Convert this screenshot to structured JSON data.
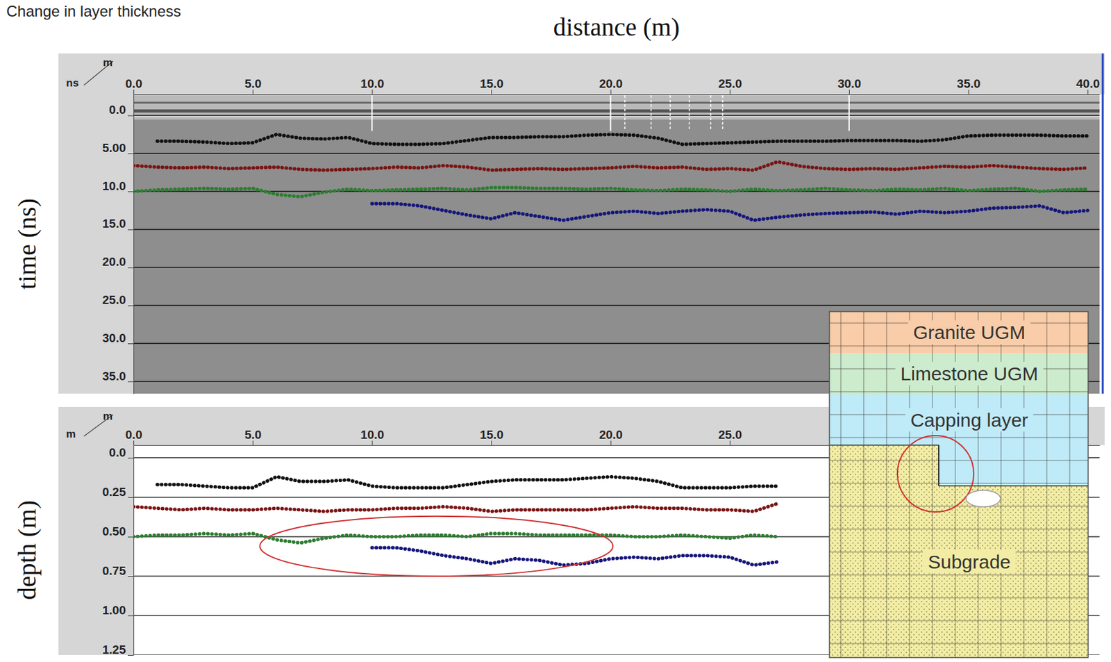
{
  "title": "Change in layer thickness",
  "chart_data": [
    {
      "type": "line",
      "x_label": "distance (m)",
      "y_label": "time (ns)",
      "x_unit": "m",
      "y_unit": "ns",
      "x": [
        0,
        1,
        2,
        3,
        4,
        5,
        6,
        7,
        8,
        9,
        10,
        11,
        12,
        13,
        14,
        15,
        16,
        17,
        18,
        19,
        20,
        21,
        22,
        23,
        24,
        25,
        26,
        27,
        28,
        29,
        30,
        31,
        32,
        33,
        34,
        35,
        36,
        37,
        38,
        39,
        40
      ],
      "series": [
        {
          "color": "#111111",
          "values": [
            null,
            3.4,
            3.4,
            3.5,
            3.7,
            3.6,
            2.5,
            3.0,
            3.1,
            2.9,
            3.7,
            3.8,
            3.8,
            3.7,
            3.3,
            2.9,
            2.9,
            2.8,
            2.8,
            2.6,
            2.5,
            2.6,
            3.0,
            3.8,
            3.7,
            3.6,
            3.5,
            3.4,
            3.4,
            3.4,
            3.3,
            3.3,
            3.3,
            3.4,
            3.2,
            2.7,
            2.6,
            2.6,
            2.6,
            2.7,
            2.7
          ]
        },
        {
          "color": "#7a1414",
          "values": [
            6.6,
            6.8,
            6.9,
            6.8,
            7.0,
            6.9,
            6.8,
            7.1,
            7.2,
            7.1,
            7.0,
            6.8,
            6.9,
            6.6,
            6.8,
            7.2,
            7.1,
            7.0,
            7.1,
            7.0,
            6.9,
            6.7,
            6.9,
            6.8,
            7.1,
            7.0,
            7.2,
            6.1,
            6.7,
            7.0,
            7.1,
            7.0,
            7.1,
            6.9,
            6.7,
            6.8,
            6.6,
            6.8,
            7.0,
            7.1,
            6.9
          ]
        },
        {
          "color": "#2e7d32",
          "values": [
            10.0,
            9.8,
            9.7,
            9.6,
            9.7,
            9.6,
            10.4,
            10.7,
            10.1,
            9.7,
            9.9,
            9.8,
            9.7,
            9.6,
            9.8,
            9.5,
            9.5,
            9.6,
            9.6,
            9.7,
            9.6,
            9.8,
            9.9,
            9.7,
            9.8,
            10.0,
            9.7,
            9.9,
            9.8,
            9.6,
            9.8,
            9.9,
            9.7,
            9.8,
            9.6,
            9.9,
            9.7,
            9.6,
            10.0,
            9.8,
            9.7
          ]
        },
        {
          "color": "#16167a",
          "values": [
            null,
            null,
            null,
            null,
            null,
            null,
            null,
            null,
            null,
            null,
            11.6,
            11.6,
            11.9,
            12.5,
            13.1,
            13.6,
            12.8,
            13.3,
            13.8,
            13.3,
            12.8,
            12.6,
            12.9,
            12.6,
            12.4,
            12.6,
            13.8,
            13.4,
            13.1,
            12.9,
            12.8,
            12.7,
            13.0,
            12.6,
            12.8,
            12.6,
            12.2,
            12.1,
            11.9,
            12.8,
            12.5
          ]
        }
      ],
      "line_style": "dotted",
      "xlim": [
        0,
        40.5
      ],
      "ylim": [
        -2.8,
        36.6
      ],
      "xticks": [
        {
          "value": 0,
          "label": "0.0"
        },
        {
          "value": 5,
          "label": "5.0"
        },
        {
          "value": 10,
          "label": "10.0"
        },
        {
          "value": 15,
          "label": "15.0"
        },
        {
          "value": 20,
          "label": "20.0"
        },
        {
          "value": 25,
          "label": "25.0"
        },
        {
          "value": 30,
          "label": "30.0"
        },
        {
          "value": 35,
          "label": "35.0"
        },
        {
          "value": 40,
          "label": "40.0"
        }
      ],
      "yticks": [
        {
          "value": 0,
          "label": "0.0"
        },
        {
          "value": 5,
          "label": "5.00"
        },
        {
          "value": 10,
          "label": "10.0"
        },
        {
          "value": 15,
          "label": "15.0"
        },
        {
          "value": 20,
          "label": "20.0"
        },
        {
          "value": 25,
          "label": "25.0"
        },
        {
          "value": 30,
          "label": "30.0"
        },
        {
          "value": 35,
          "label": "35.0"
        }
      ],
      "grid": true,
      "vertical_markers": {
        "solid": [
          10,
          20,
          30
        ],
        "dashed": [
          20.6,
          21.7,
          22.5,
          23.3,
          24.2,
          24.7
        ]
      }
    },
    {
      "type": "line",
      "y_label": "depth (m)",
      "x_unit": "m",
      "y_unit": "m",
      "x": [
        0,
        1,
        2,
        3,
        4,
        5,
        6,
        7,
        8,
        9,
        10,
        11,
        12,
        13,
        14,
        15,
        16,
        17,
        18,
        19,
        20,
        21,
        22,
        23,
        24,
        25,
        26,
        27,
        28,
        29,
        30,
        31,
        32,
        33,
        34,
        35,
        36,
        37,
        38,
        39,
        40
      ],
      "series": [
        {
          "color": "#111111",
          "values": [
            null,
            0.17,
            0.17,
            0.18,
            0.19,
            0.19,
            0.12,
            0.15,
            0.15,
            0.14,
            0.18,
            0.19,
            0.19,
            0.19,
            0.17,
            0.15,
            0.14,
            0.14,
            0.14,
            0.13,
            0.12,
            0.13,
            0.15,
            0.19,
            0.19,
            0.19,
            0.18,
            0.18,
            null,
            null,
            null,
            null,
            null,
            null,
            null,
            null,
            null,
            null,
            null,
            null,
            null
          ]
        },
        {
          "color": "#7a1414",
          "values": [
            0.31,
            0.32,
            0.33,
            0.32,
            0.33,
            0.33,
            0.32,
            0.33,
            0.34,
            0.33,
            0.33,
            0.32,
            0.32,
            0.31,
            0.32,
            0.34,
            0.33,
            0.33,
            0.33,
            0.33,
            0.32,
            0.31,
            0.32,
            0.32,
            0.33,
            0.33,
            0.34,
            0.29,
            null,
            null,
            null,
            null,
            null,
            null,
            null,
            null,
            null,
            null,
            null,
            null,
            null
          ]
        },
        {
          "color": "#2e7d32",
          "values": [
            0.5,
            0.49,
            0.49,
            0.48,
            0.49,
            0.48,
            0.52,
            0.54,
            0.51,
            0.49,
            0.5,
            0.5,
            0.49,
            0.49,
            0.5,
            0.48,
            0.48,
            0.49,
            0.49,
            0.49,
            0.49,
            0.5,
            0.5,
            0.49,
            0.5,
            0.51,
            0.49,
            0.5,
            null,
            null,
            null,
            null,
            null,
            null,
            null,
            null,
            null,
            null,
            null,
            null,
            null
          ]
        },
        {
          "color": "#16167a",
          "values": [
            null,
            null,
            null,
            null,
            null,
            null,
            null,
            null,
            null,
            null,
            0.57,
            0.57,
            0.59,
            0.62,
            0.64,
            0.67,
            0.64,
            0.65,
            0.68,
            0.67,
            0.64,
            0.63,
            0.64,
            0.62,
            0.62,
            0.63,
            0.68,
            0.66,
            null,
            null,
            null,
            null,
            null,
            null,
            null,
            null,
            null,
            null,
            null,
            null,
            null
          ]
        }
      ],
      "line_style": "dotted",
      "xlim": [
        0,
        40.5
      ],
      "ylim": [
        -0.08,
        1.25
      ],
      "xticks": [
        {
          "value": 0,
          "label": "0.0"
        },
        {
          "value": 5,
          "label": "5.0"
        },
        {
          "value": 10,
          "label": "10.0"
        },
        {
          "value": 15,
          "label": "15.0"
        },
        {
          "value": 20,
          "label": "20.0"
        },
        {
          "value": 25,
          "label": "25.0"
        }
      ],
      "yticks": [
        {
          "value": 0,
          "label": "0.0"
        },
        0.25,
        {
          "value": 0.5,
          "label": "0.50"
        },
        0.75,
        {
          "value": 1,
          "label": "1.00"
        },
        1.25
      ],
      "grid": true,
      "highlight": {
        "x": [
          5.3,
          20.1
        ],
        "y": [
          0.37,
          0.75
        ],
        "color": "#d03030"
      }
    }
  ],
  "inset": {
    "layers": [
      {
        "label": "Granite UGM",
        "color": "#f9cda9"
      },
      {
        "label": "Limestone UGM",
        "color": "#cdeccd"
      },
      {
        "label": "Capping layer",
        "color": "#bfeaf7"
      },
      {
        "label": "Subgrade",
        "color": "#f2eca5"
      }
    ]
  }
}
